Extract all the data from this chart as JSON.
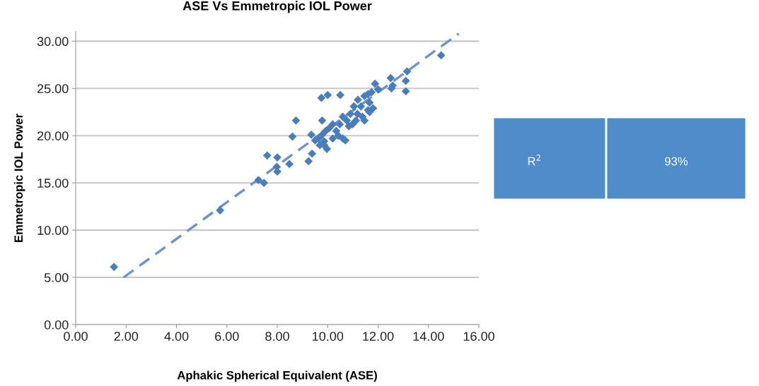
{
  "chart_data": {
    "type": "scatter",
    "title": "ASE Vs Emmetropic IOL Power",
    "xlabel": "Aphakic Spherical Equivalent (ASE)",
    "ylabel": "Emmetropic IOL Power",
    "xlim": [
      0,
      16
    ],
    "ylim": [
      0,
      31
    ],
    "xticks": [
      {
        "value": 0,
        "label": "0.00"
      },
      {
        "value": 2,
        "label": "2.00"
      },
      {
        "value": 4,
        "label": "4.00"
      },
      {
        "value": 6,
        "label": "6.00"
      },
      {
        "value": 8,
        "label": "8.00"
      },
      {
        "value": 10,
        "label": "10.00"
      },
      {
        "value": 12,
        "label": "12.00"
      },
      {
        "value": 14,
        "label": "14.00"
      },
      {
        "value": 16,
        "label": "16.00"
      }
    ],
    "yticks": [
      {
        "value": 0,
        "label": "0.00"
      },
      {
        "value": 5,
        "label": "5.00"
      },
      {
        "value": 10,
        "label": "10.00"
      },
      {
        "value": 15,
        "label": "15.00"
      },
      {
        "value": 20,
        "label": "20.00"
      },
      {
        "value": 25,
        "label": "25.00"
      },
      {
        "value": 30,
        "label": "30.00"
      }
    ],
    "grid": "y",
    "marker": "diamond",
    "series": [
      {
        "color": "#4a7ebb",
        "x": [
          1.52,
          5.73,
          7.25,
          7.47,
          7.6,
          8.0,
          7.98,
          8.0,
          8.48,
          8.6,
          8.74,
          9.75,
          10.0,
          10.5,
          9.24,
          9.38,
          9.35,
          9.5,
          9.63,
          9.78,
          9.86,
          9.69,
          9.86,
          9.97,
          9.92,
          9.78,
          10.06,
          10.2,
          10.34,
          10.2,
          10.42,
          10.6,
          10.7,
          10.48,
          10.6,
          10.76,
          10.9,
          11.04,
          11.12,
          11.18,
          10.98,
          10.84,
          11.32,
          11.38,
          11.46,
          11.6,
          11.66,
          11.2,
          11.46,
          11.6,
          11.74,
          11.66,
          11.8,
          11.88,
          12.0,
          12.5,
          12.58,
          12.53,
          13.1,
          13.1,
          13.15,
          14.5
        ],
        "values": [
          6.1,
          12.1,
          15.3,
          15.0,
          17.9,
          17.7,
          16.7,
          16.2,
          17.0,
          19.9,
          21.6,
          24.0,
          24.3,
          24.3,
          17.3,
          18.1,
          20.1,
          19.5,
          19.7,
          20.1,
          19.4,
          19.0,
          19.0,
          18.6,
          20.5,
          21.6,
          20.8,
          21.2,
          20.5,
          19.7,
          20.0,
          19.7,
          19.5,
          21.2,
          22.0,
          21.6,
          22.3,
          23.1,
          21.6,
          22.3,
          21.2,
          21.0,
          23.1,
          22.0,
          21.6,
          22.7,
          23.5,
          23.8,
          24.2,
          24.4,
          24.6,
          22.5,
          22.9,
          25.5,
          24.9,
          26.1,
          25.3,
          25.0,
          24.7,
          25.8,
          26.8,
          28.5
        ]
      },
      {
        "type": "line",
        "color": "#6f95c8",
        "line_style": "dashed",
        "marker": "none",
        "x": [
          1.9,
          15.2
        ],
        "values": [
          5.0,
          30.8
        ]
      }
    ],
    "annotations": [
      "R$^{2}$",
      "93%"
    ]
  }
}
